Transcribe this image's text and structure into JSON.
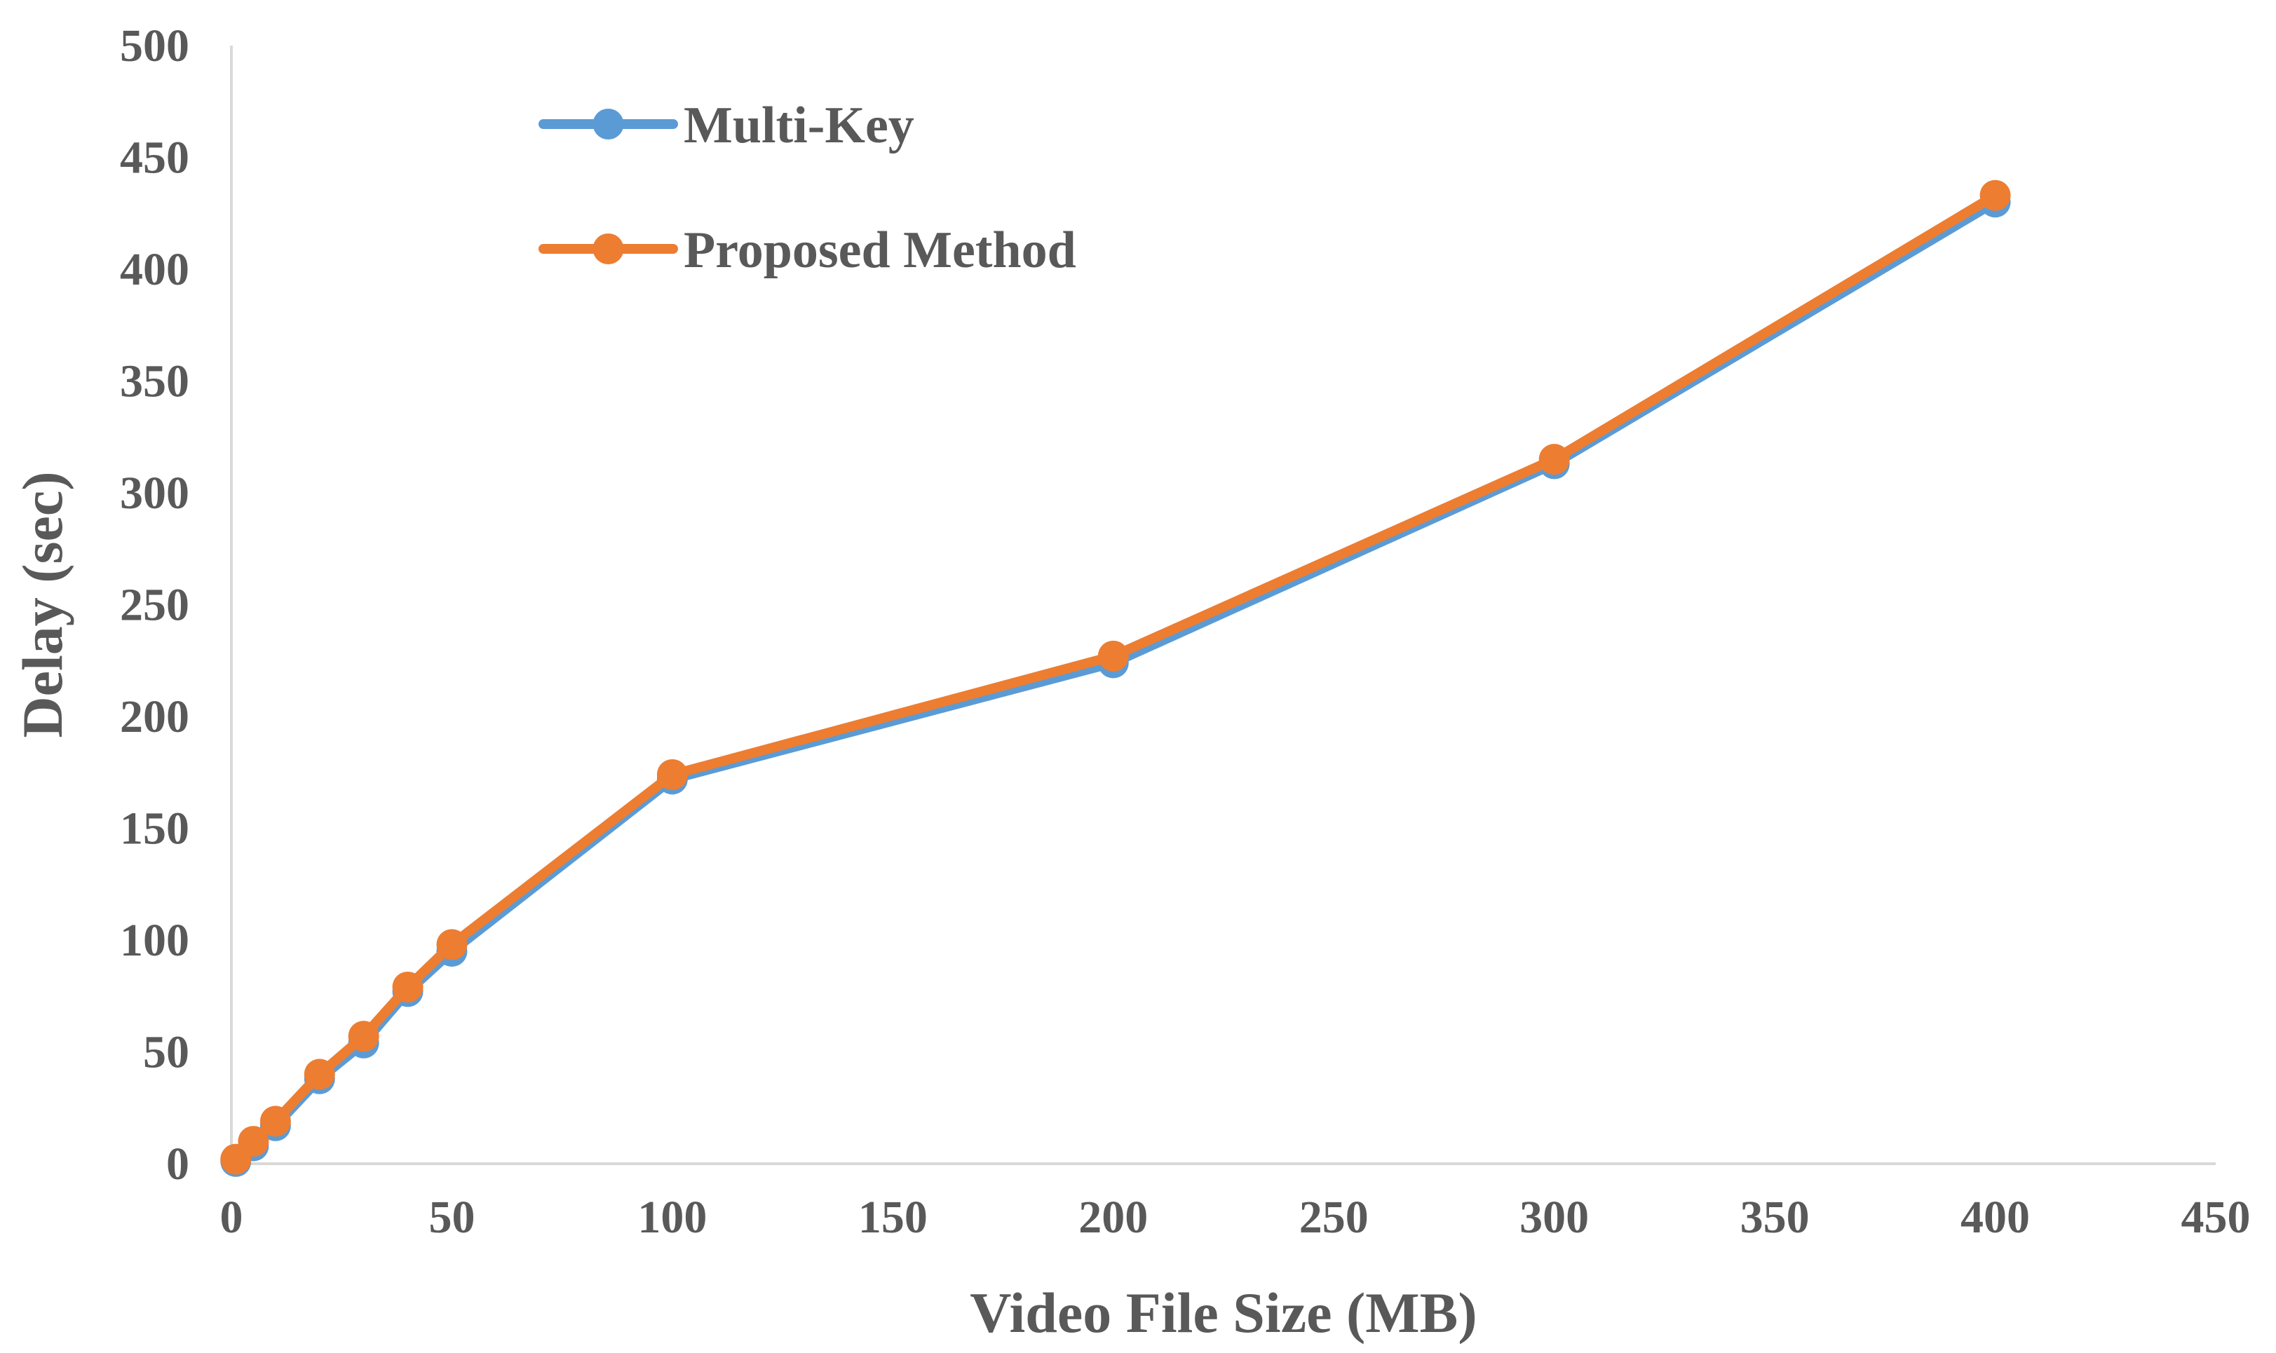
{
  "chart_data": {
    "type": "line",
    "xlabel": "Video File Size (MB)",
    "ylabel": "Delay (sec)",
    "xlim": [
      0,
      450
    ],
    "ylim": [
      0,
      500
    ],
    "x_ticks": [
      "0",
      "50",
      "100",
      "150",
      "200",
      "250",
      "300",
      "350",
      "400",
      "450"
    ],
    "y_ticks": [
      "0",
      "50",
      "100",
      "150",
      "200",
      "250",
      "300",
      "350",
      "400",
      "450",
      "500"
    ],
    "grid": false,
    "legend_position": "top-left",
    "x": [
      1,
      5,
      10,
      20,
      30,
      40,
      50,
      100,
      200,
      300,
      400
    ],
    "series": [
      {
        "name": "Multi-Key",
        "color": "#5B9BD5",
        "values": [
          1,
          8,
          17,
          38,
          54,
          77,
          95,
          172,
          224,
          313,
          430
        ]
      },
      {
        "name": "Proposed Method",
        "color": "#ED7D31",
        "values": [
          2,
          10,
          19,
          40,
          57,
          79,
          98,
          174,
          227,
          315,
          433
        ]
      }
    ]
  }
}
